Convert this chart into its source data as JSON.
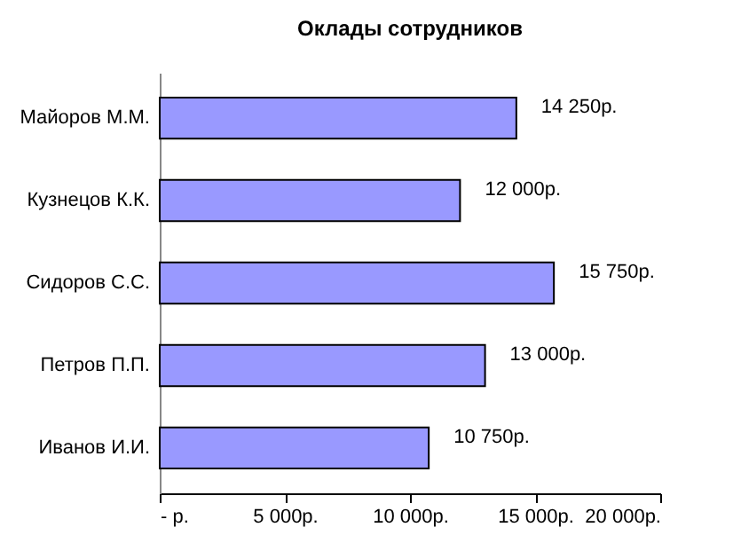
{
  "chart_data": {
    "type": "bar",
    "orientation": "horizontal",
    "title": "Оклады сотрудников",
    "categories": [
      "Майоров М.М.",
      "Кузнецов К.К.",
      "Сидоров С.С.",
      "Петров П.П.",
      "Иванов И.И."
    ],
    "values": [
      14250,
      12000,
      15750,
      13000,
      10750
    ],
    "value_labels": [
      "14 250р.",
      "12 000р.",
      "15 750р.",
      "13 000р.",
      "10 750р."
    ],
    "color": "#9999ff",
    "xlim": [
      0,
      20000
    ],
    "xticks": [
      {
        "value": 0,
        "label": "-   р."
      },
      {
        "value": 5000,
        "label": "5 000р."
      },
      {
        "value": 10000,
        "label": "10 000р."
      },
      {
        "value": 15000,
        "label": "15 000р."
      },
      {
        "value": 20000,
        "label": "20 000р."
      }
    ],
    "grid": false
  }
}
